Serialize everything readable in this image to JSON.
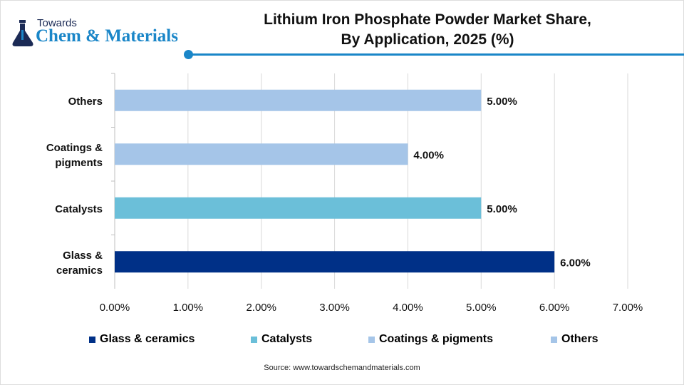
{
  "brand": {
    "line1": "Towards",
    "line2": "Chem & Materials"
  },
  "source": "Source: www.towardschemandmaterials.com",
  "chart_data": {
    "type": "bar",
    "orientation": "horizontal",
    "title": "Lithium Iron Phosphate Powder Market  Share, By Application, 2025 (%)",
    "title_lines": [
      "Lithium Iron Phosphate Powder Market  Share,",
      "By Application, 2025 (%)"
    ],
    "categories": [
      "Glass & ceramics",
      "Catalysts",
      "Coatings & pigments",
      "Others"
    ],
    "category_labels": [
      [
        "Glass &",
        "ceramics"
      ],
      [
        "Catalysts"
      ],
      [
        "Coatings &",
        "pigments"
      ],
      [
        "Others"
      ]
    ],
    "values": [
      6,
      5,
      4,
      5
    ],
    "data_labels": [
      "6.00%",
      "5.00%",
      "4.00%",
      "5.00%"
    ],
    "colors": [
      "#003087",
      "#6bbfd9",
      "#a5c5e8",
      "#a5c5e8"
    ],
    "xlim": [
      0,
      7
    ],
    "xticks": [
      "0.00%",
      "1.00%",
      "2.00%",
      "3.00%",
      "4.00%",
      "5.00%",
      "6.00%",
      "7.00%"
    ],
    "grid": true,
    "legend": "bottom",
    "legend_entries": [
      "Glass & ceramics",
      "Catalysts",
      "Coatings & pigments",
      "Others"
    ]
  }
}
